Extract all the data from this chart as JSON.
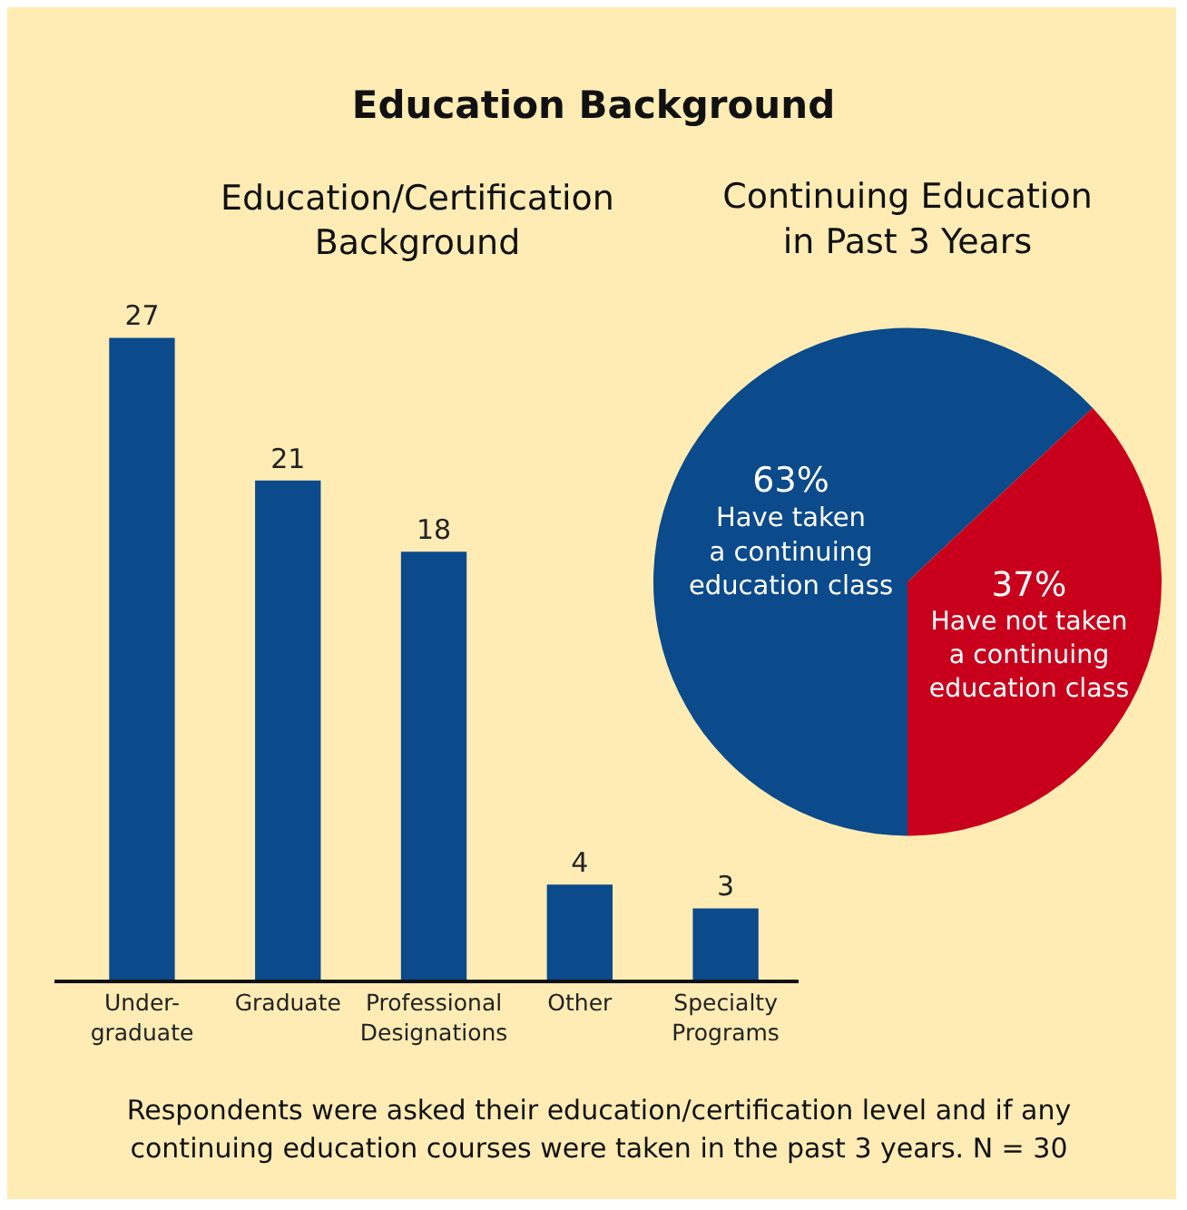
{
  "chart_data": [
    {
      "type": "bar",
      "title": "Education Background",
      "subtitle": "Education/Certification\nBackground",
      "categories": [
        "Under-\ngraduate",
        "Graduate",
        "Professional\nDesignations",
        "Other",
        "Specialty\nPrograms"
      ],
      "values": [
        27,
        21,
        18,
        4,
        3
      ],
      "color": "#0b4a8b",
      "data_labels": true,
      "grid": false,
      "legend": false,
      "annotations": [
        "Respondents were asked their education/certification level and if any\ncontinuing education courses were taken in the past 3 years. N = 30"
      ]
    },
    {
      "type": "pie",
      "title": "Continuing Education\nin Past 3 Years",
      "categories": [
        "Have taken\na continuing\neducation class",
        "Have not taken\na continuing\neducation class"
      ],
      "values": [
        63,
        37
      ],
      "colors": [
        "#0b4a8b",
        "#c8001b"
      ],
      "value_labels": [
        "63%",
        "37%"
      ],
      "legend": false
    }
  ]
}
